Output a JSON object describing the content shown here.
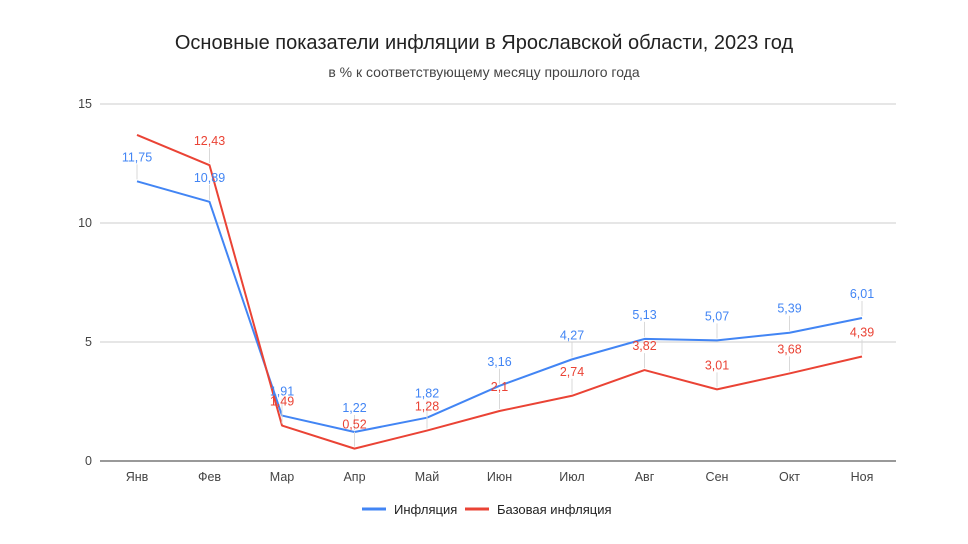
{
  "chart_data": {
    "type": "line",
    "title": "Основные показатели инфляции в Ярославской области, 2023 год",
    "subtitle": "в % к соответствующему месяцу прошлого года",
    "xlabel": "",
    "ylabel": "",
    "categories": [
      "Янв",
      "Фев",
      "Мар",
      "Апр",
      "Май",
      "Июн",
      "Июл",
      "Авг",
      "Сен",
      "Окт",
      "Ноя"
    ],
    "ylim": [
      0,
      15
    ],
    "yticks": [
      "0",
      "5",
      "10",
      "15"
    ],
    "grid": true,
    "legend_position": "bottom",
    "series": [
      {
        "name": "Инфляция",
        "color": "#4285f4",
        "values": [
          11.75,
          10.89,
          1.91,
          1.22,
          1.82,
          3.16,
          4.27,
          5.13,
          5.07,
          5.39,
          6.01
        ],
        "labels": [
          "11,75",
          "10,89",
          "1,91",
          "1,22",
          "1,82",
          "3,16",
          "4,27",
          "5,13",
          "5,07",
          "5,39",
          "6,01"
        ]
      },
      {
        "name": "Базовая инфляция",
        "color": "#ea4335",
        "values": [
          13.7,
          12.43,
          1.49,
          0.52,
          1.28,
          2.1,
          2.74,
          3.82,
          3.01,
          3.68,
          4.39
        ],
        "labels": [
          "",
          "12,43",
          "1,49",
          "0,52",
          "1,28",
          "2,1",
          "2,74",
          "3,82",
          "3,01",
          "3,68",
          "4,39"
        ]
      }
    ]
  }
}
